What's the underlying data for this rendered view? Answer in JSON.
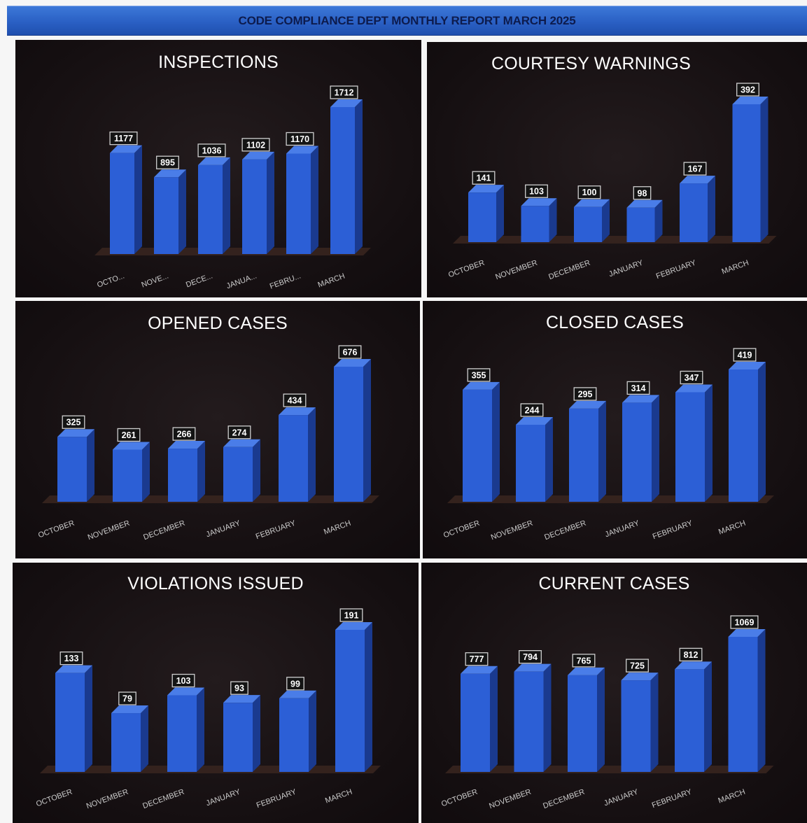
{
  "header": {
    "title": "CODE COMPLIANCE DEPT MONTHLY REPORT MARCH 2025"
  },
  "colors": {
    "bar_front": "#2c5fd6",
    "bar_side": "#1a3a8f",
    "bar_top": "#4a7de8",
    "floor": "#3a2620",
    "panel_bg": "#161012",
    "header_bg": "#2a60c4"
  },
  "chart_data": [
    {
      "type": "bar",
      "title": "INSPECTIONS",
      "categories": [
        "OCTO...",
        "NOVE...",
        "DECE...",
        "JANUA...",
        "FEBRU...",
        "MARCH"
      ],
      "values": [
        1177,
        895,
        1036,
        1102,
        1170,
        1712
      ],
      "xlabel": "",
      "ylabel": "",
      "grid": false,
      "legend": "none"
    },
    {
      "type": "bar",
      "title": "COURTESY WARNINGS",
      "categories": [
        "OCTOBER",
        "NOVEMBER",
        "DECEMBER",
        "JANUARY",
        "FEBRUARY",
        "MARCH"
      ],
      "values": [
        141,
        103,
        100,
        98,
        167,
        392
      ],
      "xlabel": "",
      "ylabel": "",
      "grid": false,
      "legend": "none"
    },
    {
      "type": "bar",
      "title": "OPENED CASES",
      "categories": [
        "OCTOBER",
        "NOVEMBER",
        "DECEMBER",
        "JANUARY",
        "FEBRUARY",
        "MARCH"
      ],
      "values": [
        325,
        261,
        266,
        274,
        434,
        676
      ],
      "xlabel": "",
      "ylabel": "",
      "grid": false,
      "legend": "none"
    },
    {
      "type": "bar",
      "title": "CLOSED CASES",
      "categories": [
        "OCTOBER",
        "NOVEMBER",
        "DECEMBER",
        "JANUARY",
        "FEBRUARY",
        "MARCH"
      ],
      "values": [
        355,
        244,
        295,
        314,
        347,
        419
      ],
      "xlabel": "",
      "ylabel": "",
      "grid": false,
      "legend": "none"
    },
    {
      "type": "bar",
      "title": "VIOLATIONS ISSUED",
      "categories": [
        "OCTOBER",
        "NOVEMBER",
        "DECEMBER",
        "JANUARY",
        "FEBRUARY",
        "MARCH"
      ],
      "values": [
        133,
        79,
        103,
        93,
        99,
        191
      ],
      "xlabel": "",
      "ylabel": "",
      "grid": false,
      "legend": "none"
    },
    {
      "type": "bar",
      "title": "CURRENT CASES",
      "categories": [
        "OCTOBER",
        "NOVEMBER",
        "DECEMBER",
        "JANUARY",
        "FEBRUARY",
        "MARCH"
      ],
      "values": [
        777,
        794,
        765,
        725,
        812,
        1069
      ],
      "xlabel": "",
      "ylabel": "",
      "grid": false,
      "legend": "none"
    }
  ]
}
